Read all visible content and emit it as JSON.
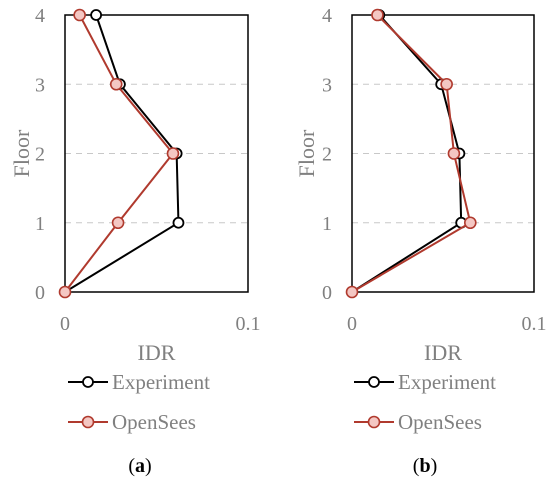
{
  "chart_data": [
    {
      "type": "line",
      "panel_label": "a",
      "xlabel": "IDR",
      "ylabel": "Floor",
      "xlim": [
        0,
        0.1
      ],
      "ylim": [
        0,
        4
      ],
      "x_ticks": [
        "0",
        "0.1"
      ],
      "y_ticks": [
        "0",
        "1",
        "2",
        "3",
        "4"
      ],
      "grid": "horizontal dashed",
      "legend_position": "below",
      "series": [
        {
          "name": "Experiment",
          "color": "#000000",
          "points": [
            {
              "x": 0,
              "y": 0
            },
            {
              "x": 0.062,
              "y": 1
            },
            {
              "x": 0.061,
              "y": 2
            },
            {
              "x": 0.03,
              "y": 3
            },
            {
              "x": 0.017,
              "y": 4
            }
          ]
        },
        {
          "name": "OpenSees",
          "color": "#b03a2e",
          "points": [
            {
              "x": 0,
              "y": 0
            },
            {
              "x": 0.029,
              "y": 1
            },
            {
              "x": 0.059,
              "y": 2
            },
            {
              "x": 0.028,
              "y": 3
            },
            {
              "x": 0.008,
              "y": 4
            }
          ]
        }
      ]
    },
    {
      "type": "line",
      "panel_label": "b",
      "xlabel": "IDR",
      "ylabel": "Floor",
      "xlim": [
        0,
        0.1
      ],
      "ylim": [
        0,
        4
      ],
      "x_ticks": [
        "0",
        "0.1"
      ],
      "y_ticks": [
        "0",
        "1",
        "2",
        "3",
        "4"
      ],
      "grid": "horizontal dashed",
      "legend_position": "below",
      "series": [
        {
          "name": "Experiment",
          "color": "#000000",
          "points": [
            {
              "x": 0,
              "y": 0
            },
            {
              "x": 0.06,
              "y": 1
            },
            {
              "x": 0.059,
              "y": 2
            },
            {
              "x": 0.049,
              "y": 3
            },
            {
              "x": 0.015,
              "y": 4
            }
          ]
        },
        {
          "name": "OpenSees",
          "color": "#b03a2e",
          "points": [
            {
              "x": 0,
              "y": 0
            },
            {
              "x": 0.065,
              "y": 1
            },
            {
              "x": 0.056,
              "y": 2
            },
            {
              "x": 0.052,
              "y": 3
            },
            {
              "x": 0.014,
              "y": 4
            }
          ]
        }
      ]
    }
  ]
}
